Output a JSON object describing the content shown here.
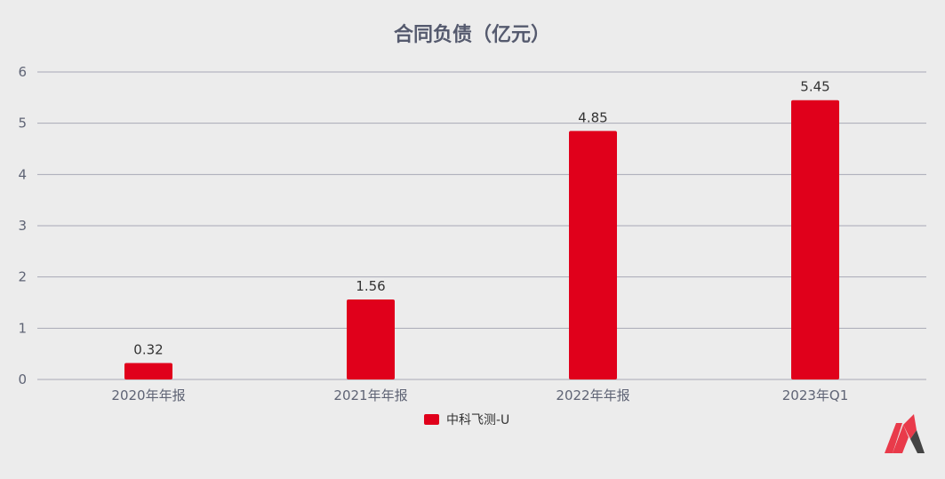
{
  "chart_data": {
    "type": "bar",
    "title": "合同负债（亿元）",
    "categories": [
      "2020年年报",
      "2021年年报",
      "2022年年报",
      "2023年Q1"
    ],
    "series": [
      {
        "name": "中科飞测-U",
        "values": [
          0.32,
          1.56,
          4.85,
          5.45
        ]
      }
    ],
    "data_labels": [
      "0.32",
      "1.56",
      "4.85",
      "5.45"
    ],
    "ylim": [
      0,
      6
    ],
    "yticks": [
      0,
      1,
      2,
      3,
      4,
      5,
      6
    ],
    "grid": true,
    "legend_position": "bottom-center",
    "xlabel": "",
    "ylabel": ""
  },
  "colors": {
    "bar": "#e0001b",
    "background": "#ececec",
    "title_text": "#555a6e",
    "axis_text": "#5f6475",
    "grid": "#a7a9b6",
    "label_text": "#333333"
  },
  "logo": {
    "icon": "brand-logo-icon"
  }
}
